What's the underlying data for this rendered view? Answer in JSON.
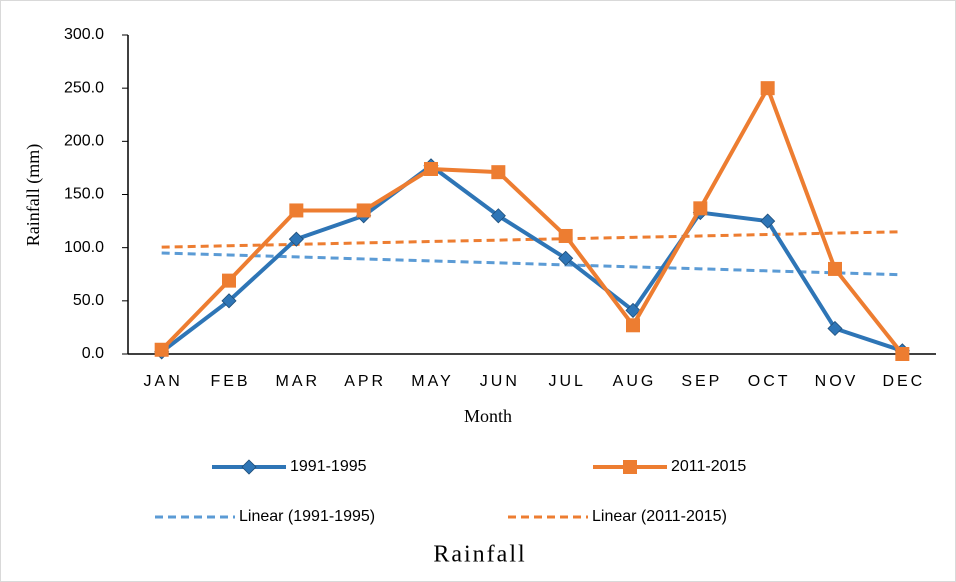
{
  "chart_data": {
    "type": "line",
    "title": "Rainfall",
    "x_label": "Month",
    "y_label": "Rainfall (mm)",
    "categories": [
      "JAN",
      "FEB",
      "MAR",
      "APR",
      "MAY",
      "JUN",
      "JUL",
      "AUG",
      "SEP",
      "OCT",
      "NOV",
      "DEC"
    ],
    "series": [
      {
        "name": "1991-1995",
        "color": "#2e75b6",
        "line_style": "solid",
        "marker": "diamond",
        "values": [
          2,
          50,
          108,
          130,
          177,
          130,
          90,
          41,
          133,
          125,
          24,
          3
        ]
      },
      {
        "name": "2011-2015",
        "color": "#ed7d31",
        "line_style": "solid",
        "marker": "square",
        "values": [
          4,
          69,
          135,
          135,
          174,
          171,
          111,
          27,
          137,
          250,
          80,
          0
        ]
      },
      {
        "name": "Linear (1991-1995)",
        "color": "#5b9bd5",
        "line_style": "dashed",
        "values": [
          95.0,
          93.1,
          91.3,
          89.4,
          87.5,
          85.7,
          83.8,
          81.9,
          80.1,
          78.2,
          76.3,
          74.5
        ]
      },
      {
        "name": "Linear (2011-2015)",
        "color": "#ed7d31",
        "line_style": "dashed",
        "values": [
          100.5,
          101.8,
          103.1,
          104.5,
          105.8,
          107.1,
          108.4,
          109.7,
          111.0,
          112.4,
          113.7,
          115.0
        ]
      }
    ],
    "ylim": [
      0,
      300
    ],
    "yticks": [
      {
        "value": 0,
        "label": "0.0"
      },
      {
        "value": 50,
        "label": "50.0"
      },
      {
        "value": 100,
        "label": "100.0"
      },
      {
        "value": 150,
        "label": "150.0"
      },
      {
        "value": 200,
        "label": "200.0"
      },
      {
        "value": 250,
        "label": "250.0"
      },
      {
        "value": 300,
        "label": "300.0"
      }
    ],
    "grid": false,
    "legend": "bottom"
  }
}
